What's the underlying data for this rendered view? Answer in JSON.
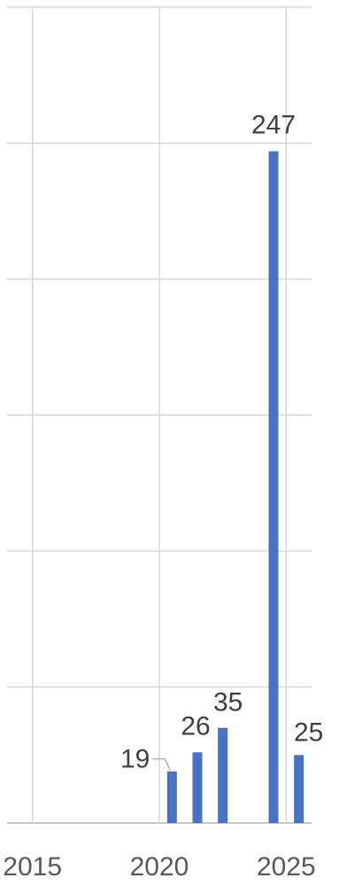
{
  "chart_data": {
    "type": "bar",
    "x_axis": {
      "ticks": [
        2015,
        2020,
        2025
      ],
      "range": [
        2014,
        2026
      ]
    },
    "y_axis": {
      "range": [
        0,
        300
      ],
      "gridline_step": 50,
      "tick_labels_shown": false
    },
    "series": [
      {
        "color": "#4a72c4",
        "points": [
          {
            "x": 2020.5,
            "y": 19,
            "label": "19"
          },
          {
            "x": 2021.5,
            "y": 26,
            "label": "26"
          },
          {
            "x": 2022.5,
            "y": 35,
            "label": "35"
          },
          {
            "x": 2024.5,
            "y": 247,
            "label": "247"
          },
          {
            "x": 2025.5,
            "y": 25,
            "label": "25"
          }
        ]
      }
    ],
    "grid": true,
    "title": "",
    "xlabel": "",
    "ylabel": ""
  }
}
